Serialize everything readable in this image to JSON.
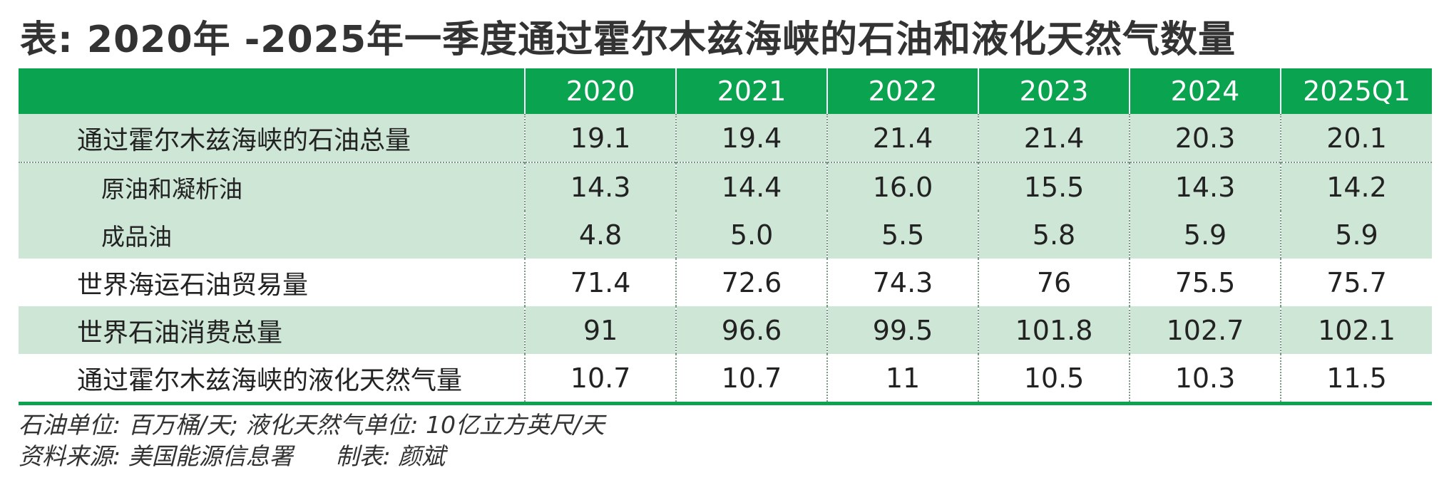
{
  "title": "表: 2020年 -2025年一季度通过霍尔木兹海峡的石油和液化天然气数量",
  "table": {
    "columns": [
      "",
      "2020",
      "2021",
      "2022",
      "2023",
      "2024",
      "2025Q1"
    ],
    "rows": [
      {
        "label": "通过霍尔木兹海峡的石油总量",
        "values": [
          "19.1",
          "19.4",
          "21.4",
          "21.4",
          "20.3",
          "20.1"
        ]
      },
      {
        "label": "原油和凝析油",
        "values": [
          "14.3",
          "14.4",
          "16.0",
          "15.5",
          "14.3",
          "14.2"
        ]
      },
      {
        "label": "成品油",
        "values": [
          "4.8",
          "5.0",
          "5.5",
          "5.8",
          "5.9",
          "5.9"
        ]
      },
      {
        "label": "世界海运石油贸易量",
        "values": [
          "71.4",
          "72.6",
          "74.3",
          "76",
          "75.5",
          "75.7"
        ]
      },
      {
        "label": "世界石油消费总量",
        "values": [
          "91",
          "96.6",
          "99.5",
          "101.8",
          "102.7",
          "102.1"
        ]
      },
      {
        "label": "通过霍尔木兹海峡的液化天然气量",
        "values": [
          "10.7",
          "10.7",
          "11",
          "10.5",
          "10.3",
          "11.5"
        ]
      }
    ]
  },
  "notes": {
    "units": "石油单位: 百万桶/天; 液化天然气单位: 10亿立方英尺/天",
    "source": "资料来源: 美国能源信息署",
    "maker": "制表: 颜斌"
  },
  "colors": {
    "header_bg": "#0aa34f",
    "band_bg": "#cde6d6",
    "text": "#222222"
  }
}
